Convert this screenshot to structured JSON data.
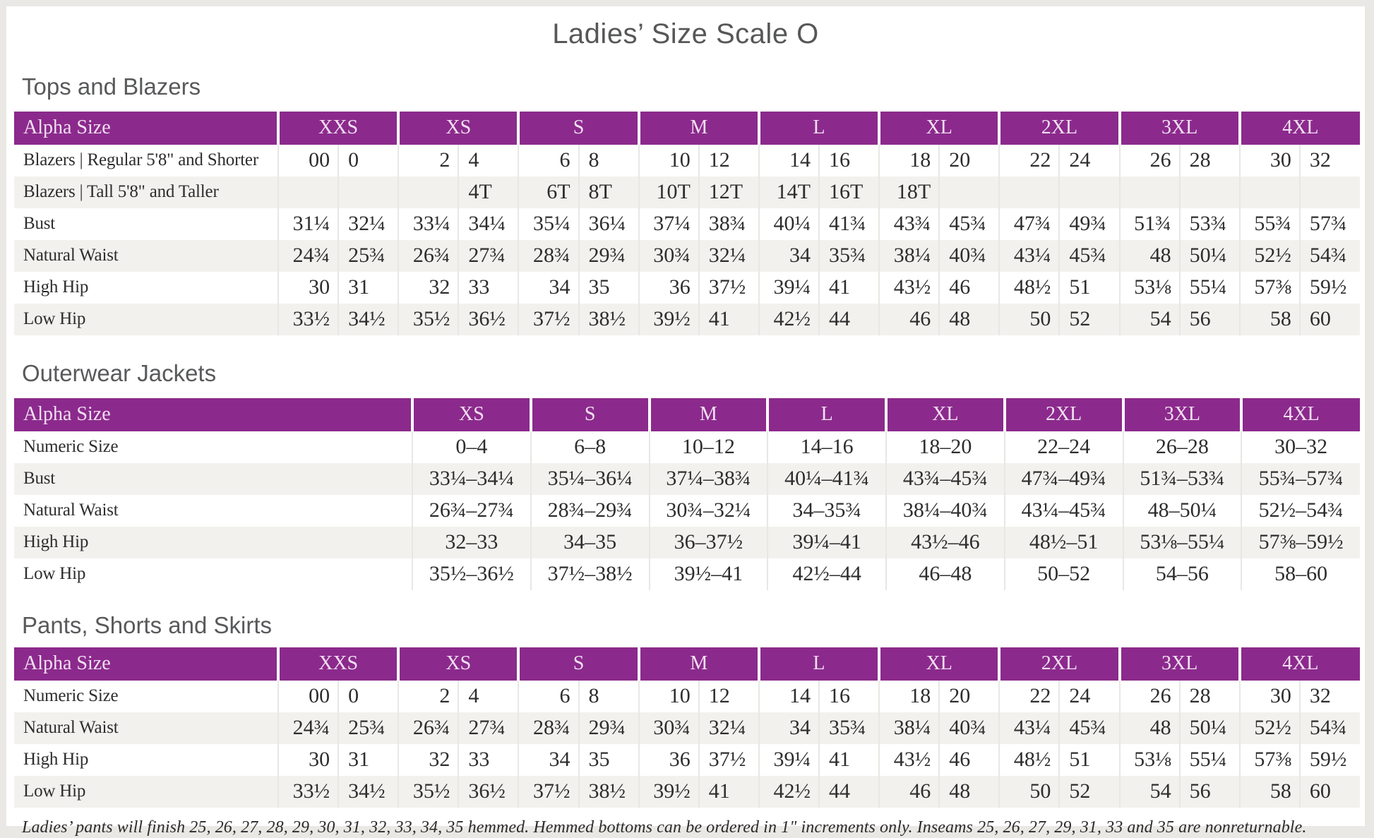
{
  "page": {
    "title": "Ladies’ Size Scale O",
    "footnote": "Ladies’ pants will finish 25, 26, 27, 28, 29, 30, 31, 32, 33, 34, 35 hemmed. Hemmed bottoms can be ordered in 1\" increments only. Inseams 25, 26, 27, 29, 31, 33 and 35 are nonreturnable."
  },
  "colors": {
    "accent_purple": "#8b2a8c",
    "header_text": "#f2dff2",
    "row_alt_gray": "#f2f1ee",
    "divider_gray": "#e8e7e4",
    "heading_gray": "#58595b",
    "body_text": "#2d2d2d",
    "page_frame": "#e9e8e5"
  },
  "tables": [
    {
      "id": "tops-and-blazers",
      "heading": "Tops and Blazers",
      "type": "paired",
      "header_label": "Alpha Size",
      "sizes": [
        "XXS",
        "XS",
        "S",
        "M",
        "L",
        "XL",
        "2XL",
        "3XL",
        "4XL"
      ],
      "rows": [
        {
          "label": "Blazers | Regular 5'8\" and Shorter",
          "values": [
            "00",
            "0",
            "2",
            "4",
            "6",
            "8",
            "10",
            "12",
            "14",
            "16",
            "18",
            "20",
            "22",
            "24",
            "26",
            "28",
            "30",
            "32"
          ]
        },
        {
          "label": "Blazers | Tall 5'8\" and Taller",
          "values": [
            "",
            "",
            "",
            "4T",
            "6T",
            "8T",
            "10T",
            "12T",
            "14T",
            "16T",
            "18T",
            "",
            "",
            "",
            "",
            "",
            "",
            ""
          ]
        },
        {
          "label": "Bust",
          "values": [
            "31¼",
            "32¼",
            "33¼",
            "34¼",
            "35¼",
            "36¼",
            "37¼",
            "38¾",
            "40¼",
            "41¾",
            "43¾",
            "45¾",
            "47¾",
            "49¾",
            "51¾",
            "53¾",
            "55¾",
            "57¾"
          ]
        },
        {
          "label": "Natural Waist",
          "values": [
            "24¾",
            "25¾",
            "26¾",
            "27¾",
            "28¾",
            "29¾",
            "30¾",
            "32¼",
            "34",
            "35¾",
            "38¼",
            "40¾",
            "43¼",
            "45¾",
            "48",
            "50¼",
            "52½",
            "54¾"
          ]
        },
        {
          "label": "High Hip",
          "values": [
            "30",
            "31",
            "32",
            "33",
            "34",
            "35",
            "36",
            "37½",
            "39¼",
            "41",
            "43½",
            "46",
            "48½",
            "51",
            "53⅛",
            "55¼",
            "57⅜",
            "59½"
          ]
        },
        {
          "label": "Low Hip",
          "values": [
            "33½",
            "34½",
            "35½",
            "36½",
            "37½",
            "38½",
            "39½",
            "41",
            "42½",
            "44",
            "46",
            "48",
            "50",
            "52",
            "54",
            "56",
            "58",
            "60"
          ]
        }
      ]
    },
    {
      "id": "outerwear-jackets",
      "heading": "Outerwear Jackets",
      "type": "single",
      "header_label": "Alpha Size",
      "sizes": [
        "XS",
        "S",
        "M",
        "L",
        "XL",
        "2XL",
        "3XL",
        "4XL"
      ],
      "rows": [
        {
          "label": "Numeric Size",
          "values": [
            "0–4",
            "6–8",
            "10–12",
            "14–16",
            "18–20",
            "22–24",
            "26–28",
            "30–32"
          ]
        },
        {
          "label": "Bust",
          "values": [
            "33¼–34¼",
            "35¼–36¼",
            "37¼–38¾",
            "40¼–41¾",
            "43¾–45¾",
            "47¾–49¾",
            "51¾–53¾",
            "55¾–57¾"
          ]
        },
        {
          "label": "Natural Waist",
          "values": [
            "26¾–27¾",
            "28¾–29¾",
            "30¾–32¼",
            "34–35¾",
            "38¼–40¾",
            "43¼–45¾",
            "48–50¼",
            "52½–54¾"
          ]
        },
        {
          "label": "High Hip",
          "values": [
            "32–33",
            "34–35",
            "36–37½",
            "39¼–41",
            "43½–46",
            "48½–51",
            "53⅛–55¼",
            "57⅜–59½"
          ]
        },
        {
          "label": "Low Hip",
          "values": [
            "35½–36½",
            "37½–38½",
            "39½–41",
            "42½–44",
            "46–48",
            "50–52",
            "54–56",
            "58–60"
          ]
        }
      ]
    },
    {
      "id": "pants-shorts-and-skirts",
      "heading": "Pants, Shorts and Skirts",
      "type": "paired",
      "header_label": "Alpha Size",
      "sizes": [
        "XXS",
        "XS",
        "S",
        "M",
        "L",
        "XL",
        "2XL",
        "3XL",
        "4XL"
      ],
      "rows": [
        {
          "label": "Numeric Size",
          "values": [
            "00",
            "0",
            "2",
            "4",
            "6",
            "8",
            "10",
            "12",
            "14",
            "16",
            "18",
            "20",
            "22",
            "24",
            "26",
            "28",
            "30",
            "32"
          ]
        },
        {
          "label": "Natural Waist",
          "values": [
            "24¾",
            "25¾",
            "26¾",
            "27¾",
            "28¾",
            "29¾",
            "30¾",
            "32¼",
            "34",
            "35¾",
            "38¼",
            "40¾",
            "43¼",
            "45¾",
            "48",
            "50¼",
            "52½",
            "54¾"
          ]
        },
        {
          "label": "High Hip",
          "values": [
            "30",
            "31",
            "32",
            "33",
            "34",
            "35",
            "36",
            "37½",
            "39¼",
            "41",
            "43½",
            "46",
            "48½",
            "51",
            "53⅛",
            "55¼",
            "57⅜",
            "59½"
          ]
        },
        {
          "label": "Low Hip",
          "values": [
            "33½",
            "34½",
            "35½",
            "36½",
            "37½",
            "38½",
            "39½",
            "41",
            "42½",
            "44",
            "46",
            "48",
            "50",
            "52",
            "54",
            "56",
            "58",
            "60"
          ]
        }
      ]
    }
  ]
}
